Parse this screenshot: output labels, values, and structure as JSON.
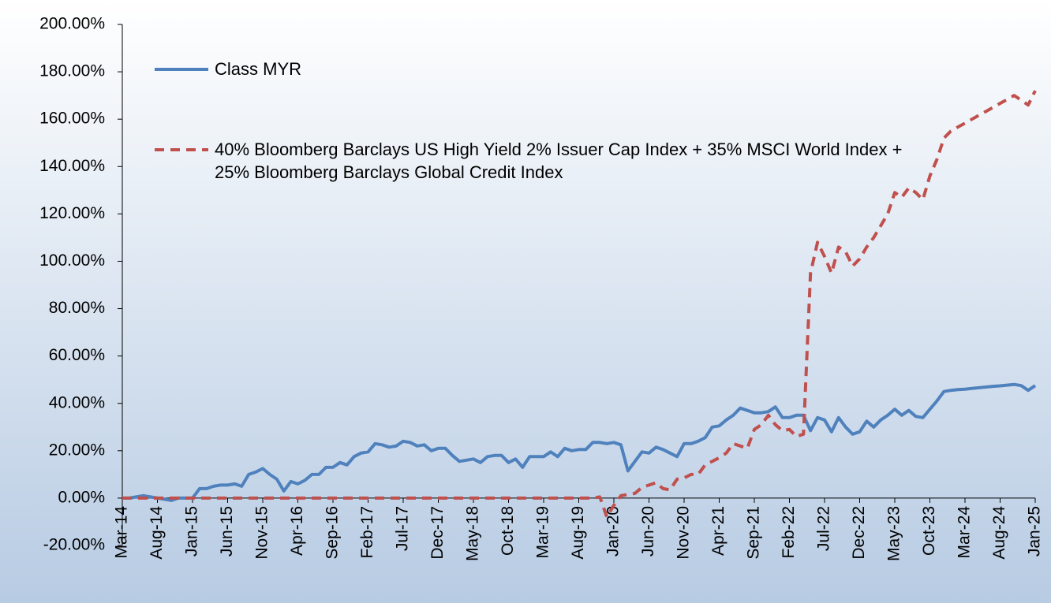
{
  "chart_data": {
    "type": "line",
    "categories": [
      "Mar-14",
      null,
      null,
      null,
      null,
      "Aug-14",
      null,
      null,
      null,
      null,
      "Jan-15",
      null,
      null,
      null,
      null,
      "Jun-15",
      null,
      null,
      null,
      null,
      "Nov-15",
      null,
      null,
      null,
      null,
      "Apr-16",
      null,
      null,
      null,
      null,
      "Sep-16",
      null,
      null,
      null,
      null,
      "Feb-17",
      null,
      null,
      null,
      null,
      "Jul-17",
      null,
      null,
      null,
      null,
      "Dec-17",
      null,
      null,
      null,
      null,
      "May-18",
      null,
      null,
      null,
      null,
      "Oct-18",
      null,
      null,
      null,
      null,
      "Mar-19",
      null,
      null,
      null,
      null,
      "Aug-19",
      null,
      null,
      null,
      null,
      "Jan-20",
      null,
      null,
      null,
      null,
      "Jun-20",
      null,
      null,
      null,
      null,
      "Nov-20",
      null,
      null,
      null,
      null,
      "Apr-21",
      null,
      null,
      null,
      null,
      "Sep-21",
      null,
      null,
      null,
      null,
      "Feb-22",
      null,
      null,
      null,
      null,
      "Jul-22",
      null,
      null,
      null,
      null,
      "Dec-22",
      null,
      null,
      null,
      null,
      "May-23",
      null,
      null,
      null,
      null,
      "Oct-23",
      null,
      null,
      null,
      null,
      "Mar-24",
      null,
      null,
      null,
      null,
      "Aug-24",
      null,
      null,
      null,
      null,
      "Jan-25"
    ],
    "series": [
      {
        "name": "Class MYR",
        "color": "#4f81bd",
        "dash": false,
        "values": [
          0,
          0,
          0.5,
          1,
          0.5,
          0,
          -0.5,
          -1,
          0,
          0,
          0,
          4,
          4,
          5,
          5.5,
          5.5,
          6,
          5,
          10,
          11,
          12.5,
          10,
          8,
          3,
          7,
          6,
          7.5,
          10,
          10,
          13,
          13,
          15,
          14,
          17.5,
          19,
          19.5,
          23,
          22.5,
          21.5,
          22,
          24,
          23.5,
          22,
          22.5,
          20,
          21,
          21,
          18,
          15.5,
          16,
          16.5,
          15,
          17.5,
          18,
          18,
          15,
          16.5,
          13,
          17.5,
          17.5,
          17.5,
          19.5,
          17.5,
          21,
          20,
          20.5,
          20.5,
          23.5,
          23.5,
          23,
          23.5,
          22.5,
          11.5,
          15.5,
          19.5,
          19,
          21.5,
          20.5,
          19,
          17.5,
          23,
          23,
          24,
          25.5,
          30,
          30.5,
          33,
          35,
          38,
          37,
          36,
          36,
          36.5,
          38.5,
          34,
          34,
          35,
          35,
          28.5,
          34,
          33,
          28,
          34,
          30,
          27,
          28,
          32.5,
          30,
          33,
          35,
          37.5,
          35,
          37,
          34.5,
          34,
          37.5,
          41,
          45,
          45.5,
          45.8,
          46,
          46.3,
          46.6,
          46.9,
          47.2,
          47.4,
          47.7,
          48,
          47.5,
          45.5,
          47.5
        ]
      },
      {
        "name": "40% Bloomberg Barclays US High Yield 2% Issuer Cap Index + 35% MSCI World Index + 25% Bloomberg Barclays Global Credit Index",
        "color": "#c0504d",
        "dash": true,
        "values": [
          0,
          0,
          0,
          0,
          0,
          0,
          0,
          0,
          0,
          0,
          0,
          0,
          0,
          0,
          0,
          0,
          0,
          0,
          0,
          0,
          0,
          0,
          0,
          0,
          0,
          0,
          0,
          0,
          0,
          0,
          0,
          0,
          0,
          0,
          0,
          0,
          0,
          0,
          0,
          0,
          0,
          0,
          0,
          0,
          0,
          0,
          0,
          0,
          0,
          0,
          0,
          0,
          0,
          0,
          0,
          0,
          0,
          0,
          0,
          0,
          0,
          0,
          0,
          0,
          0,
          0,
          0,
          0,
          0.5,
          -8,
          -3,
          1,
          1.5,
          2,
          4.5,
          5.5,
          6.5,
          4,
          3.5,
          8,
          8.5,
          10,
          10,
          14,
          15.5,
          17,
          19,
          23,
          22,
          21,
          29,
          31,
          35,
          31,
          28.5,
          29,
          26,
          27,
          95,
          108,
          102,
          95,
          106,
          104,
          98,
          101,
          106,
          110,
          115,
          120,
          129,
          127,
          131,
          129,
          126,
          136,
          143,
          152,
          155,
          156.7,
          158.3,
          160,
          161.7,
          163.3,
          165,
          166.7,
          168.3,
          170,
          168,
          166,
          172
        ]
      }
    ],
    "ylim": [
      -20,
      200
    ],
    "yticks": [
      {
        "value": -20,
        "label": "-20.00%"
      },
      {
        "value": 0,
        "label": "0.00%"
      },
      {
        "value": 20,
        "label": "20.00%"
      },
      {
        "value": 40,
        "label": "40.00%"
      },
      {
        "value": 60,
        "label": "60.00%"
      },
      {
        "value": 80,
        "label": "80.00%"
      },
      {
        "value": 100,
        "label": "100.00%"
      },
      {
        "value": 120,
        "label": "120.00%"
      },
      {
        "value": 140,
        "label": "140.00%"
      },
      {
        "value": 160,
        "label": "160.00%"
      },
      {
        "value": 180,
        "label": "180.00%"
      },
      {
        "value": 200,
        "label": "200.00%"
      }
    ],
    "grid": false
  }
}
